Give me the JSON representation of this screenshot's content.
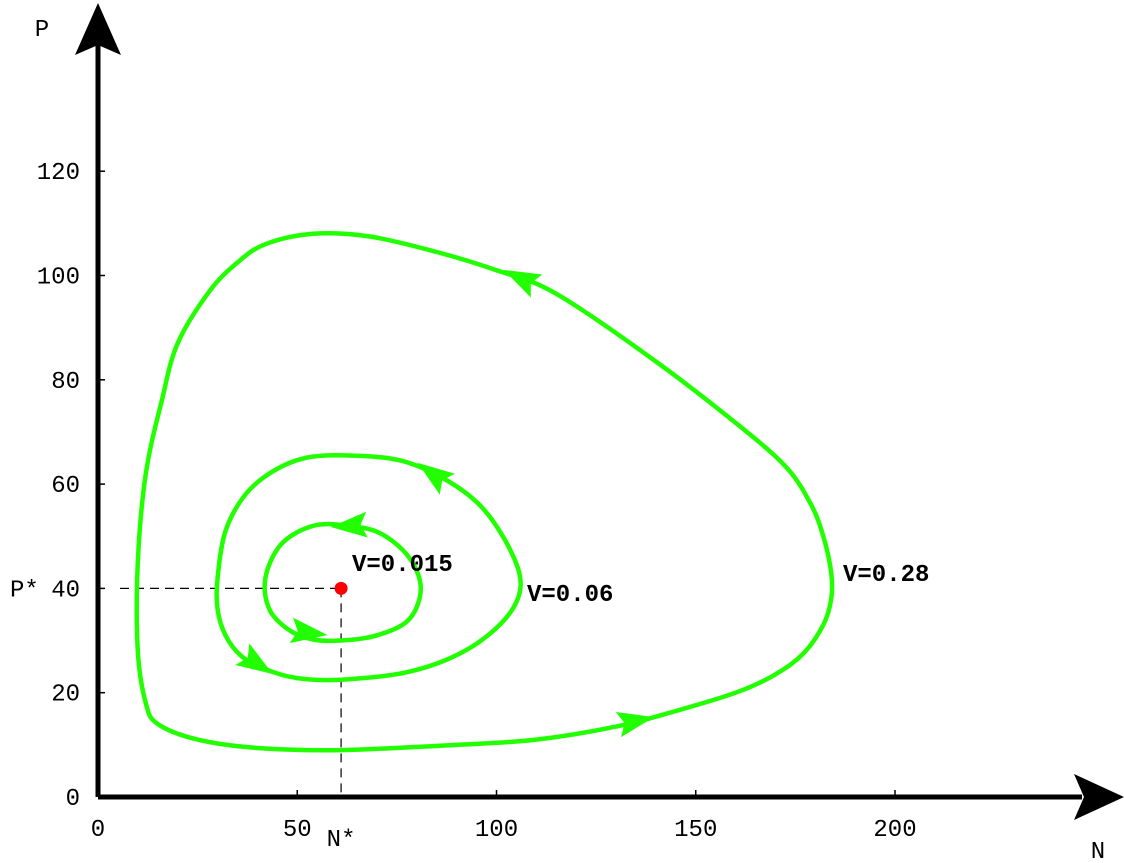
{
  "chart_data": {
    "type": "line",
    "xlabel": "N",
    "ylabel": "P",
    "xlim": [
      0,
      250
    ],
    "ylim": [
      0,
      150
    ],
    "x_ticks": [
      0,
      50,
      100,
      150,
      200
    ],
    "y_ticks": [
      0,
      20,
      40,
      60,
      80,
      100,
      120
    ],
    "equilibrium": {
      "x": 61,
      "y": 40,
      "x_label": "N*",
      "y_label": "P*",
      "color": "#ff0000"
    },
    "series_color": "#22ff00",
    "series": [
      {
        "name": "V=0.015",
        "points": [
          [
            61,
            30
          ],
          [
            70,
            31
          ],
          [
            78,
            34
          ],
          [
            81,
            40
          ],
          [
            78,
            46
          ],
          [
            71,
            50.5
          ],
          [
            63,
            52
          ],
          [
            54,
            52
          ],
          [
            46,
            48.5
          ],
          [
            42,
            42
          ],
          [
            43,
            36
          ],
          [
            48,
            32
          ],
          [
            54,
            30.2
          ],
          [
            61,
            30
          ]
        ],
        "arrows": [
          [
            53,
            31.5,
            1,
            -0.1
          ],
          [
            63,
            52,
            -1,
            -0.05
          ]
        ]
      },
      {
        "name": "V=0.06",
        "points": [
          [
            61,
            22.5
          ],
          [
            78,
            24
          ],
          [
            92,
            28
          ],
          [
            102,
            34
          ],
          [
            106,
            40
          ],
          [
            104,
            46.5
          ],
          [
            97,
            55
          ],
          [
            88,
            60.5
          ],
          [
            76,
            64.5
          ],
          [
            62,
            65.5
          ],
          [
            52,
            65
          ],
          [
            44,
            62.5
          ],
          [
            37,
            58
          ],
          [
            32,
            51
          ],
          [
            30,
            42
          ],
          [
            30,
            36
          ],
          [
            32,
            31
          ],
          [
            36,
            27
          ],
          [
            42,
            24.5
          ],
          [
            50,
            22.8
          ],
          [
            61,
            22.5
          ]
        ],
        "arrows": [
          [
            40,
            25.5,
            1,
            -0.5
          ],
          [
            84,
            62,
            -1,
            0.55
          ]
        ]
      },
      {
        "name": "V=0.28",
        "points": [
          [
            61,
            9
          ],
          [
            90,
            10
          ],
          [
            110,
            11
          ],
          [
            130,
            13.5
          ],
          [
            145,
            16.5
          ],
          [
            160,
            20
          ],
          [
            170,
            23.5
          ],
          [
            177,
            27.5
          ],
          [
            182,
            33
          ],
          [
            184,
            38
          ],
          [
            184,
            43
          ],
          [
            182,
            50
          ],
          [
            179,
            56
          ],
          [
            173,
            63
          ],
          [
            162,
            70.5
          ],
          [
            140,
            83.5
          ],
          [
            115,
            96.5
          ],
          [
            100,
            101
          ],
          [
            85,
            104.5
          ],
          [
            68,
            107.5
          ],
          [
            54,
            108
          ],
          [
            42,
            106
          ],
          [
            35,
            102.5
          ],
          [
            28,
            97
          ],
          [
            20,
            87
          ],
          [
            16,
            76
          ],
          [
            12,
            62
          ],
          [
            10,
            45
          ],
          [
            10,
            28
          ],
          [
            12,
            18
          ],
          [
            15,
            14
          ],
          [
            25,
            11
          ],
          [
            40,
            9.4
          ],
          [
            61,
            9
          ]
        ],
        "arrows": [
          [
            135,
            14.6,
            1,
            0.16
          ],
          [
            106,
            99.5,
            -1,
            0.38
          ]
        ]
      }
    ]
  }
}
